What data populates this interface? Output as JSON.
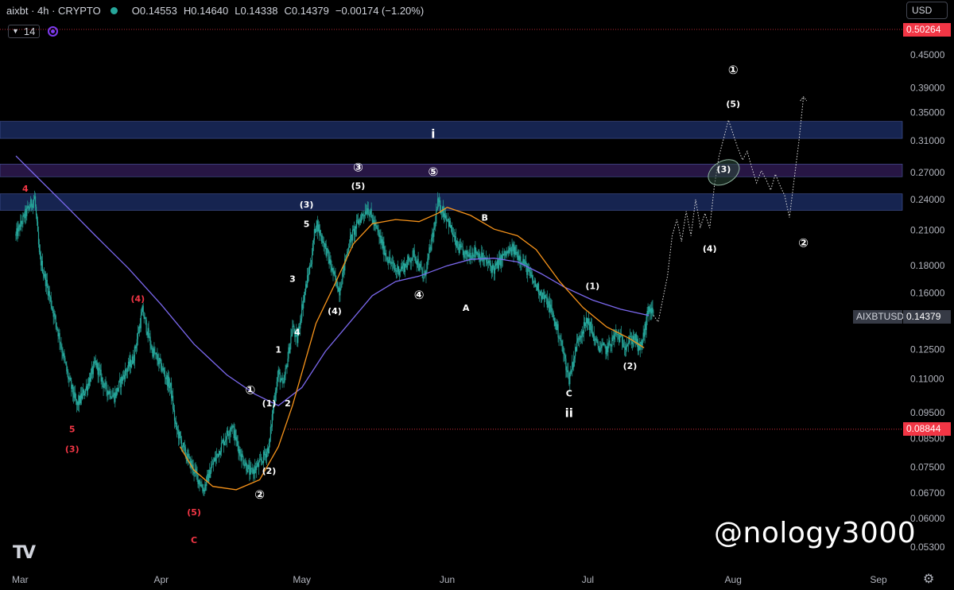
{
  "header": {
    "symbol_text": "aixbt · 4h · CRYPTO",
    "open": "O0.14553",
    "high": "H0.14640",
    "low": "L0.14338",
    "close": "C0.14379",
    "change": "−0.00174 (−1.20%)",
    "status_color": "#26a69a"
  },
  "indicator": {
    "length_label": "14",
    "icon": "eye-icon"
  },
  "currency_button": "USD",
  "price_tags": {
    "upper_level": "0.50264",
    "lower_level": "0.08844",
    "symbol": "AIXBTUSD",
    "current": "0.14379"
  },
  "watermark": "@nology3000",
  "logo": "TV",
  "settings_icon": "gear-icon",
  "chart_data": {
    "type": "candlestick",
    "timeframe": "4h",
    "y_scale": "log",
    "ylim": [
      0.05,
      0.52
    ],
    "xlim": [
      "2025-03-01",
      "2025-09-16"
    ],
    "y_ticks": [
      "0.45000",
      "0.39000",
      "0.35000",
      "0.31000",
      "0.27000",
      "0.24000",
      "0.21000",
      "0.18000",
      "0.16000",
      "0.14379",
      "0.12500",
      "0.11000",
      "0.09500",
      "0.08500",
      "0.07500",
      "0.06700",
      "0.06000",
      "0.05300"
    ],
    "x_ticks": [
      {
        "label": "Mar",
        "date": "2025-03-01"
      },
      {
        "label": "Apr",
        "date": "2025-04-01"
      },
      {
        "label": "May",
        "date": "2025-05-01"
      },
      {
        "label": "Jun",
        "date": "2025-06-01"
      },
      {
        "label": "Jul",
        "date": "2025-07-01"
      },
      {
        "label": "Aug",
        "date": "2025-08-01"
      },
      {
        "label": "Sep",
        "date": "2025-09-01"
      }
    ],
    "price_path": [
      [
        "2025-03-01",
        0.205
      ],
      [
        "2025-03-03",
        0.225
      ],
      [
        "2025-03-05",
        0.242
      ],
      [
        "2025-03-06",
        0.188
      ],
      [
        "2025-03-08",
        0.16
      ],
      [
        "2025-03-10",
        0.135
      ],
      [
        "2025-03-12",
        0.112
      ],
      [
        "2025-03-14",
        0.098
      ],
      [
        "2025-03-16",
        0.106
      ],
      [
        "2025-03-18",
        0.118
      ],
      [
        "2025-03-20",
        0.106
      ],
      [
        "2025-03-22",
        0.102
      ],
      [
        "2025-03-24",
        0.112
      ],
      [
        "2025-03-26",
        0.12
      ],
      [
        "2025-03-28",
        0.148
      ],
      [
        "2025-03-30",
        0.125
      ],
      [
        "2025-04-01",
        0.116
      ],
      [
        "2025-04-03",
        0.106
      ],
      [
        "2025-04-04",
        0.09
      ],
      [
        "2025-04-06",
        0.08
      ],
      [
        "2025-04-08",
        0.074
      ],
      [
        "2025-04-10",
        0.068
      ],
      [
        "2025-04-12",
        0.076
      ],
      [
        "2025-04-14",
        0.083
      ],
      [
        "2025-04-16",
        0.09
      ],
      [
        "2025-04-18",
        0.079
      ],
      [
        "2025-04-20",
        0.073
      ],
      [
        "2025-04-22",
        0.076
      ],
      [
        "2025-04-24",
        0.082
      ],
      [
        "2025-04-25",
        0.1
      ],
      [
        "2025-04-26",
        0.113
      ],
      [
        "2025-04-27",
        0.106
      ],
      [
        "2025-04-29",
        0.138
      ],
      [
        "2025-04-30",
        0.13
      ],
      [
        "2025-05-01",
        0.15
      ],
      [
        "2025-05-03",
        0.185
      ],
      [
        "2025-05-04",
        0.218
      ],
      [
        "2025-05-06",
        0.195
      ],
      [
        "2025-05-08",
        0.17
      ],
      [
        "2025-05-09",
        0.162
      ],
      [
        "2025-05-11",
        0.198
      ],
      [
        "2025-05-13",
        0.218
      ],
      [
        "2025-05-15",
        0.232
      ],
      [
        "2025-05-17",
        0.21
      ],
      [
        "2025-05-19",
        0.188
      ],
      [
        "2025-05-21",
        0.176
      ],
      [
        "2025-05-23",
        0.18
      ],
      [
        "2025-05-25",
        0.19
      ],
      [
        "2025-05-27",
        0.17
      ],
      [
        "2025-05-29",
        0.206
      ],
      [
        "2025-05-30",
        0.236
      ],
      [
        "2025-06-01",
        0.222
      ],
      [
        "2025-06-03",
        0.196
      ],
      [
        "2025-06-05",
        0.188
      ],
      [
        "2025-06-07",
        0.192
      ],
      [
        "2025-06-09",
        0.184
      ],
      [
        "2025-06-11",
        0.177
      ],
      [
        "2025-06-13",
        0.188
      ],
      [
        "2025-06-15",
        0.193
      ],
      [
        "2025-06-17",
        0.185
      ],
      [
        "2025-06-19",
        0.17
      ],
      [
        "2025-06-21",
        0.16
      ],
      [
        "2025-06-23",
        0.15
      ],
      [
        "2025-06-25",
        0.132
      ],
      [
        "2025-06-27",
        0.11
      ],
      [
        "2025-06-29",
        0.132
      ],
      [
        "2025-07-01",
        0.142
      ],
      [
        "2025-07-03",
        0.127
      ],
      [
        "2025-07-05",
        0.125
      ],
      [
        "2025-07-07",
        0.134
      ],
      [
        "2025-07-09",
        0.128
      ],
      [
        "2025-07-11",
        0.132
      ],
      [
        "2025-07-12",
        0.124
      ],
      [
        "2025-07-13",
        0.134
      ],
      [
        "2025-07-14",
        0.15
      ],
      [
        "2025-07-15",
        0.145
      ]
    ],
    "ema_orange": [
      [
        "2025-04-05",
        0.082
      ],
      [
        "2025-04-08",
        0.074
      ],
      [
        "2025-04-12",
        0.069
      ],
      [
        "2025-04-17",
        0.068
      ],
      [
        "2025-04-22",
        0.071
      ],
      [
        "2025-04-26",
        0.082
      ],
      [
        "2025-04-29",
        0.098
      ],
      [
        "2025-05-01",
        0.113
      ],
      [
        "2025-05-04",
        0.14
      ],
      [
        "2025-05-08",
        0.166
      ],
      [
        "2025-05-12",
        0.198
      ],
      [
        "2025-05-16",
        0.216
      ],
      [
        "2025-05-21",
        0.22
      ],
      [
        "2025-05-26",
        0.218
      ],
      [
        "2025-05-30",
        0.226
      ],
      [
        "2025-06-01",
        0.232
      ],
      [
        "2025-06-06",
        0.224
      ],
      [
        "2025-06-11",
        0.211
      ],
      [
        "2025-06-16",
        0.205
      ],
      [
        "2025-06-20",
        0.193
      ],
      [
        "2025-06-25",
        0.168
      ],
      [
        "2025-06-30",
        0.15
      ],
      [
        "2025-07-05",
        0.138
      ],
      [
        "2025-07-10",
        0.131
      ],
      [
        "2025-07-13",
        0.126
      ]
    ],
    "ma_purple": [
      [
        "2025-03-01",
        0.29
      ],
      [
        "2025-03-06",
        0.262
      ],
      [
        "2025-03-12",
        0.232
      ],
      [
        "2025-03-18",
        0.205
      ],
      [
        "2025-03-25",
        0.178
      ],
      [
        "2025-04-01",
        0.152
      ],
      [
        "2025-04-08",
        0.128
      ],
      [
        "2025-04-15",
        0.112
      ],
      [
        "2025-04-21",
        0.103
      ],
      [
        "2025-04-26",
        0.098
      ],
      [
        "2025-05-01",
        0.106
      ],
      [
        "2025-05-06",
        0.124
      ],
      [
        "2025-05-11",
        0.14
      ],
      [
        "2025-05-16",
        0.158
      ],
      [
        "2025-05-21",
        0.168
      ],
      [
        "2025-05-26",
        0.172
      ],
      [
        "2025-06-01",
        0.18
      ],
      [
        "2025-06-06",
        0.185
      ],
      [
        "2025-06-11",
        0.186
      ],
      [
        "2025-06-16",
        0.183
      ],
      [
        "2025-06-21",
        0.174
      ],
      [
        "2025-06-26",
        0.164
      ],
      [
        "2025-07-02",
        0.155
      ],
      [
        "2025-07-08",
        0.149
      ],
      [
        "2025-07-14",
        0.145
      ]
    ],
    "projection_path": [
      [
        "2025-07-15",
        0.145
      ],
      [
        "2025-07-16",
        0.141
      ],
      [
        "2025-07-18",
        0.172
      ],
      [
        "2025-07-19",
        0.205
      ],
      [
        "2025-07-20",
        0.22
      ],
      [
        "2025-07-21",
        0.2
      ],
      [
        "2025-07-22",
        0.228
      ],
      [
        "2025-07-23",
        0.205
      ],
      [
        "2025-07-24",
        0.24
      ],
      [
        "2025-07-25",
        0.213
      ],
      [
        "2025-07-26",
        0.226
      ],
      [
        "2025-07-27",
        0.212
      ],
      [
        "2025-07-28",
        0.255
      ],
      [
        "2025-07-29",
        0.29
      ],
      [
        "2025-07-31",
        0.339
      ],
      [
        "2025-08-02",
        0.3
      ],
      [
        "2025-08-03",
        0.285
      ],
      [
        "2025-08-04",
        0.296
      ],
      [
        "2025-08-05",
        0.275
      ],
      [
        "2025-08-06",
        0.258
      ],
      [
        "2025-08-07",
        0.272
      ],
      [
        "2025-08-08",
        0.262
      ],
      [
        "2025-08-09",
        0.25
      ],
      [
        "2025-08-10",
        0.268
      ],
      [
        "2025-08-11",
        0.255
      ],
      [
        "2025-08-12",
        0.244
      ],
      [
        "2025-08-13",
        0.222
      ],
      [
        "2025-08-15",
        0.308
      ],
      [
        "2025-08-16",
        0.375
      ]
    ],
    "zones": [
      {
        "y1": 0.313,
        "y2": 0.337,
        "color": "#1a2a5e"
      },
      {
        "y1": 0.265,
        "y2": 0.28,
        "color": "#2e1a50"
      },
      {
        "y1": 0.229,
        "y2": 0.246,
        "color": "#1a2a5e"
      }
    ],
    "h_lines": [
      {
        "y": 0.50264,
        "color": "#f23645"
      },
      {
        "y": 0.08844,
        "color": "#f23645",
        "from": "2025-04-28"
      }
    ],
    "ellipse": {
      "date": "2025-07-30",
      "y": 0.27
    },
    "wave_labels": [
      {
        "text": "4",
        "date": "2025-03-03",
        "y": 0.252,
        "color": "red"
      },
      {
        "text": "5",
        "date": "2025-03-13",
        "y": 0.0885,
        "color": "red"
      },
      {
        "text": "(3)",
        "date": "2025-03-13",
        "y": 0.0812,
        "color": "red"
      },
      {
        "text": "(4)",
        "date": "2025-03-27",
        "y": 0.156,
        "color": "red"
      },
      {
        "text": "(5)",
        "date": "2025-04-08",
        "y": 0.0617,
        "color": "red"
      },
      {
        "text": "C",
        "date": "2025-04-08",
        "y": 0.0547,
        "color": "red"
      },
      {
        "text": "①",
        "date": "2025-04-20",
        "y": 0.1045,
        "color": "white"
      },
      {
        "text": "②",
        "date": "2025-04-22",
        "y": 0.0664,
        "color": "white"
      },
      {
        "text": "(1)",
        "date": "2025-04-24",
        "y": 0.099,
        "color": "white"
      },
      {
        "text": "2",
        "date": "2025-04-28",
        "y": 0.099,
        "color": "white"
      },
      {
        "text": "(2)",
        "date": "2025-04-24",
        "y": 0.0738,
        "color": "white"
      },
      {
        "text": "1",
        "date": "2025-04-26",
        "y": 0.125,
        "color": "white"
      },
      {
        "text": "3",
        "date": "2025-04-29",
        "y": 0.17,
        "color": "white"
      },
      {
        "text": "4",
        "date": "2025-04-30",
        "y": 0.135,
        "color": "white"
      },
      {
        "text": "5",
        "date": "2025-05-02",
        "y": 0.216,
        "color": "white"
      },
      {
        "text": "(3)",
        "date": "2025-05-02",
        "y": 0.235,
        "color": "white"
      },
      {
        "text": "(4)",
        "date": "2025-05-08",
        "y": 0.148,
        "color": "white"
      },
      {
        "text": "③",
        "date": "2025-05-13",
        "y": 0.275,
        "color": "white"
      },
      {
        "text": "(5)",
        "date": "2025-05-13",
        "y": 0.255,
        "color": "white"
      },
      {
        "text": "④",
        "date": "2025-05-26",
        "y": 0.158,
        "color": "white"
      },
      {
        "text": "i",
        "date": "2025-05-29",
        "y": 0.318,
        "color": "white"
      },
      {
        "text": "⑤",
        "date": "2025-05-29",
        "y": 0.27,
        "color": "white"
      },
      {
        "text": "B",
        "date": "2025-06-09",
        "y": 0.222,
        "color": "white"
      },
      {
        "text": "A",
        "date": "2025-06-05",
        "y": 0.15,
        "color": "white"
      },
      {
        "text": "(1)",
        "date": "2025-07-02",
        "y": 0.165,
        "color": "white"
      },
      {
        "text": "C",
        "date": "2025-06-27",
        "y": 0.1035,
        "color": "white"
      },
      {
        "text": "ii",
        "date": "2025-06-27",
        "y": 0.0945,
        "color": "white"
      },
      {
        "text": "(2)",
        "date": "2025-07-10",
        "y": 0.1165,
        "color": "white"
      },
      {
        "text": "(3)",
        "date": "2025-07-30",
        "y": 0.274,
        "color": "white"
      },
      {
        "text": "(4)",
        "date": "2025-07-27",
        "y": 0.194,
        "color": "white"
      },
      {
        "text": "①",
        "date": "2025-08-01",
        "y": 0.42,
        "color": "white"
      },
      {
        "text": "(5)",
        "date": "2025-08-01",
        "y": 0.364,
        "color": "white"
      },
      {
        "text": "②",
        "date": "2025-08-16",
        "y": 0.198,
        "color": "white"
      }
    ],
    "colors": {
      "candle": "#26a69a",
      "ema": "#f7931a",
      "ma": "#7b68ee",
      "label_red": "#f23645",
      "label_white": "#ffffff"
    }
  }
}
